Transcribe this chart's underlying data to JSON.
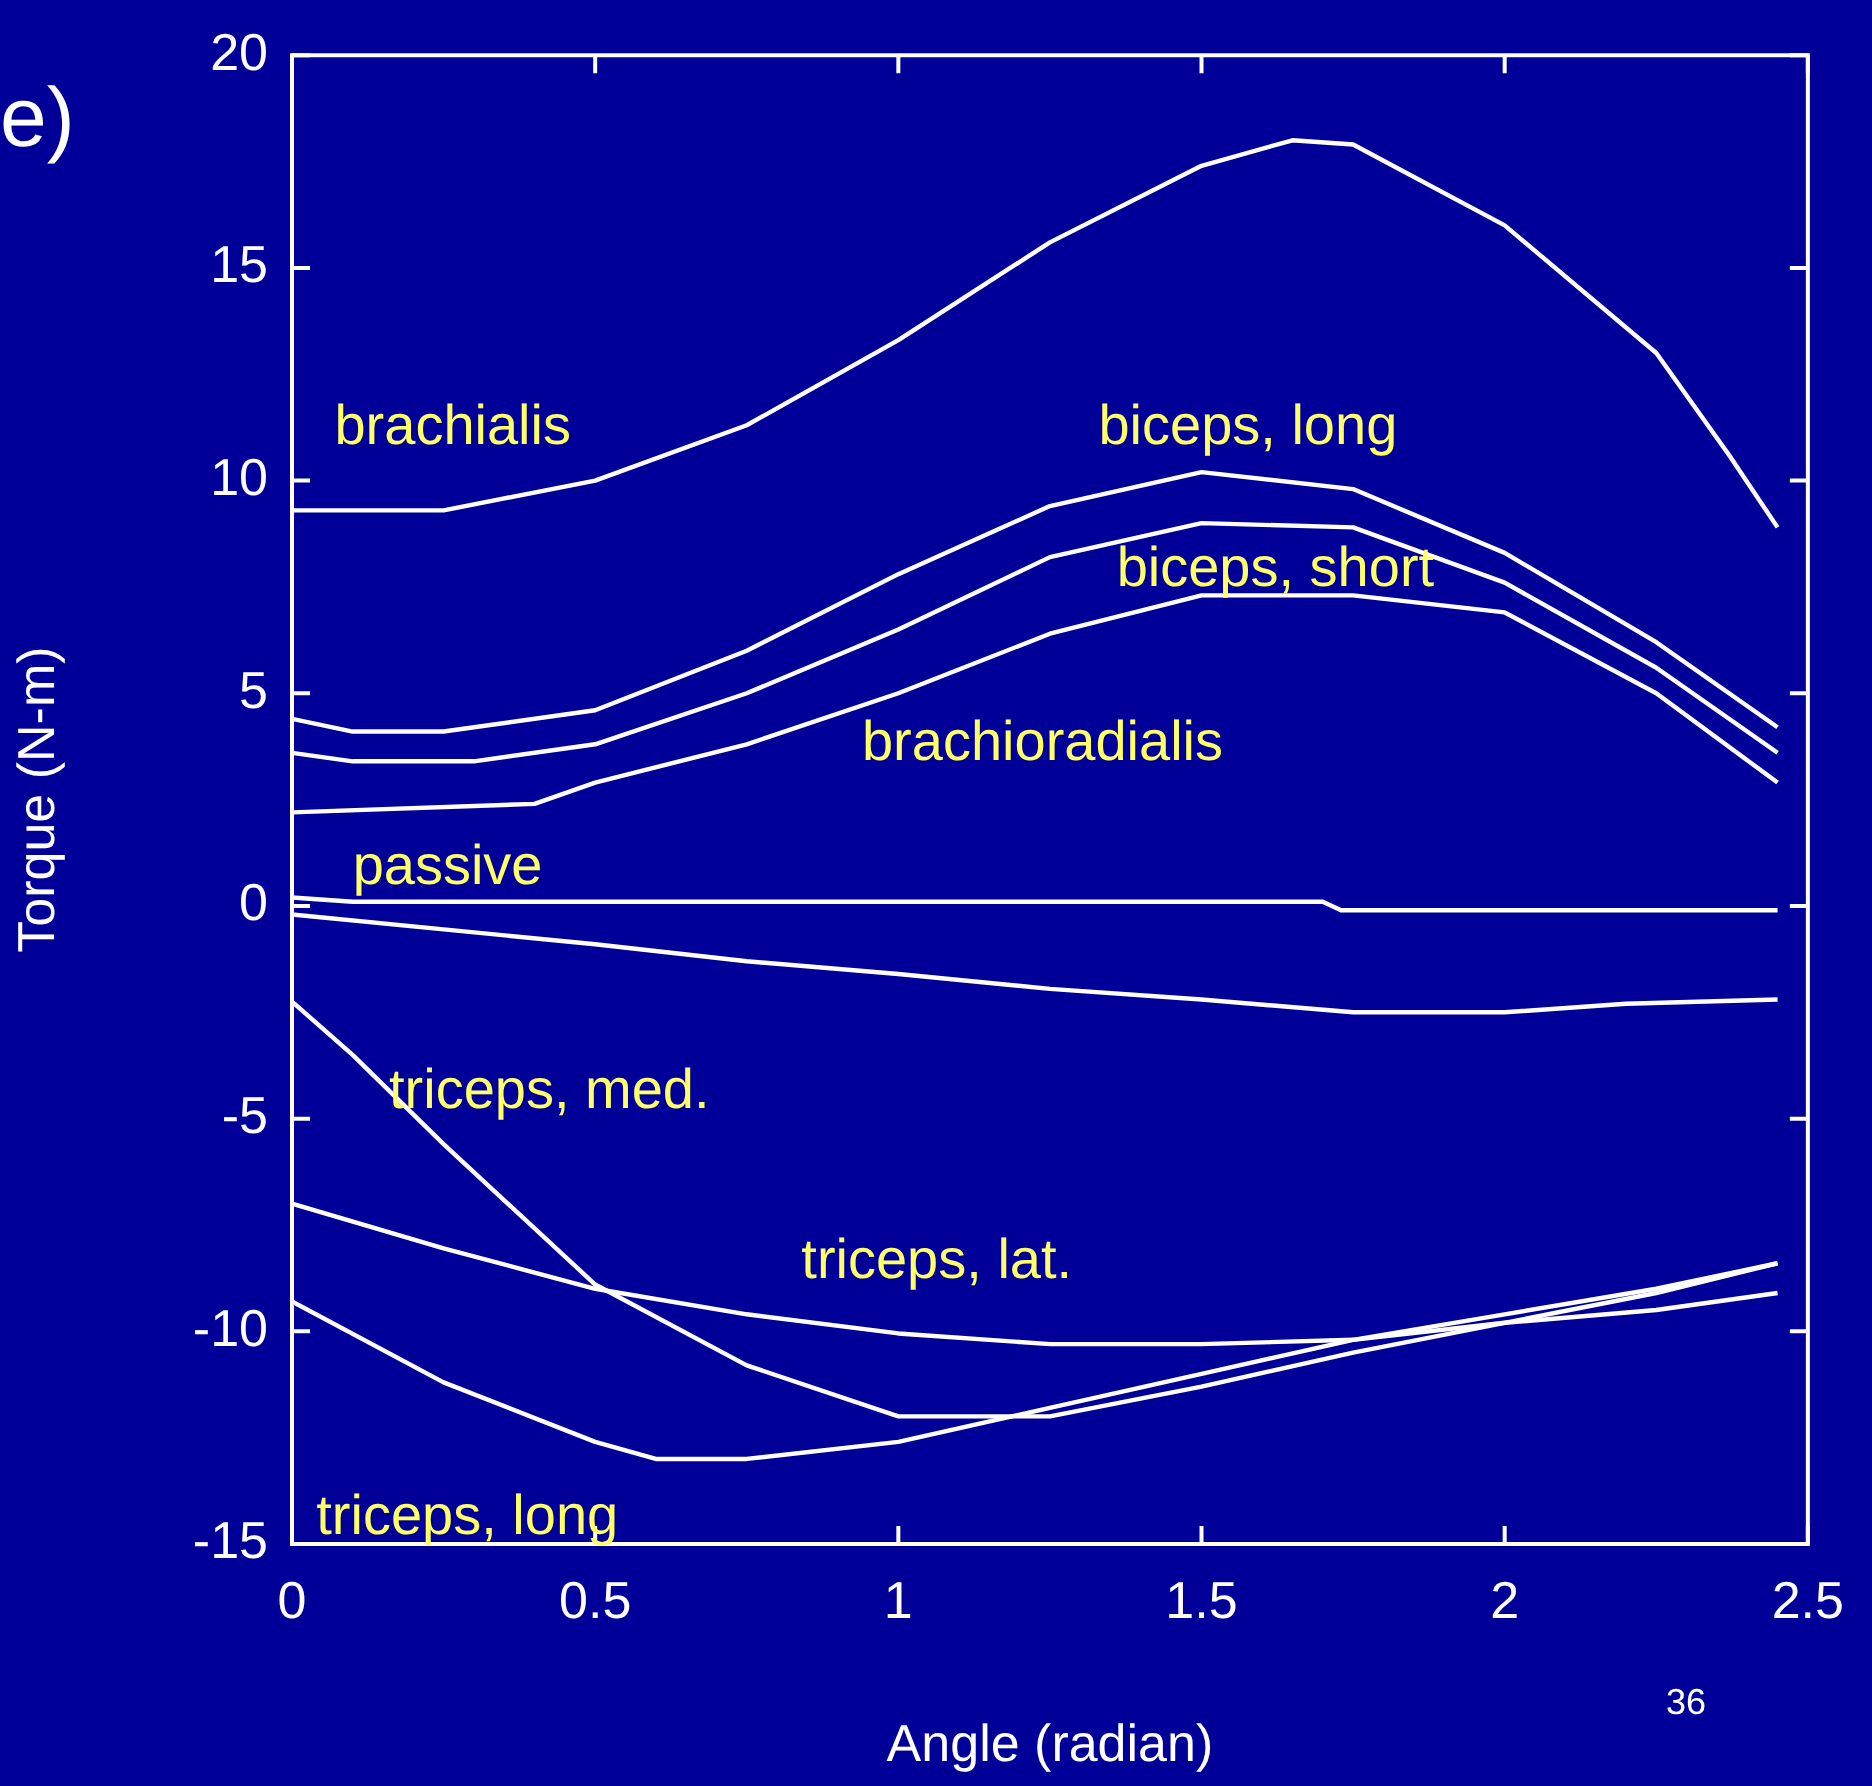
{
  "chart_data": {
    "type": "line",
    "xlabel": "Angle (radian)",
    "ylabel": "Torque (N-m)",
    "xlim": [
      0,
      2.5
    ],
    "xticks": [
      0,
      0.5,
      1,
      1.5,
      2,
      2.5
    ],
    "ylim": [
      -15,
      20
    ],
    "yticks": [
      -15,
      -10,
      -5,
      0,
      5,
      10,
      15,
      20
    ],
    "marker": "none",
    "line_style": "solid",
    "series": [
      {
        "name": "brachialis",
        "color": "#ffffff",
        "x": [
          0,
          0.25,
          0.5,
          0.75,
          1,
          1.25,
          1.5,
          1.65,
          1.75,
          2,
          2.25,
          2.37,
          2.45
        ],
        "values": [
          9.3,
          9.3,
          10.0,
          11.3,
          13.3,
          15.6,
          17.4,
          18.0,
          17.9,
          16.0,
          13.0,
          10.6,
          8.9
        ]
      },
      {
        "name": "biceps, long",
        "color": "#ffffff",
        "x": [
          0,
          0.1,
          0.25,
          0.5,
          0.75,
          1,
          1.25,
          1.5,
          1.75,
          2,
          2.25,
          2.45
        ],
        "values": [
          4.4,
          4.1,
          4.1,
          4.6,
          6.0,
          7.8,
          9.4,
          10.2,
          9.8,
          8.3,
          6.2,
          4.2
        ]
      },
      {
        "name": "biceps, short",
        "color": "#ffffff",
        "x": [
          0,
          0.1,
          0.3,
          0.5,
          0.75,
          1,
          1.25,
          1.5,
          1.75,
          2,
          2.25,
          2.45
        ],
        "values": [
          3.6,
          3.4,
          3.4,
          3.8,
          5.0,
          6.5,
          8.2,
          9.0,
          8.9,
          7.6,
          5.6,
          3.6
        ]
      },
      {
        "name": "brachioradialis",
        "color": "#ffffff",
        "x": [
          0,
          0.4,
          0.5,
          0.75,
          1,
          1.25,
          1.5,
          1.75,
          2,
          2.25,
          2.45
        ],
        "values": [
          2.2,
          2.4,
          2.9,
          3.8,
          5.0,
          6.4,
          7.3,
          7.3,
          6.9,
          5.0,
          2.9
        ]
      },
      {
        "name": "passive",
        "color": "#ffffff",
        "x": [
          0,
          0.1,
          1.7,
          1.73,
          2.45
        ],
        "values": [
          0.2,
          0.1,
          0.1,
          -0.1,
          -0.1
        ]
      },
      {
        "color": "#ffffff",
        "x": [
          0,
          0.25,
          0.5,
          0.75,
          1,
          1.25,
          1.5,
          1.75,
          2,
          2.2,
          2.45
        ],
        "values": [
          -0.2,
          -0.55,
          -0.9,
          -1.3,
          -1.6,
          -1.95,
          -2.2,
          -2.5,
          -2.5,
          -2.3,
          -2.2
        ]
      },
      {
        "name": "triceps, med.",
        "color": "#ffffff",
        "x": [
          0,
          0.1,
          0.25,
          0.5,
          0.75,
          1,
          1.25,
          1.5,
          1.75,
          2,
          2.25,
          2.45
        ],
        "values": [
          -2.25,
          -3.5,
          -5.6,
          -8.9,
          -10.8,
          -12.0,
          -12.0,
          -11.3,
          -10.5,
          -9.8,
          -9.1,
          -8.4
        ]
      },
      {
        "name": "triceps, lat.",
        "color": "#ffffff",
        "x": [
          0,
          0.25,
          0.5,
          0.75,
          1,
          1.25,
          1.5,
          1.75,
          2,
          2.25,
          2.45
        ],
        "values": [
          -7.0,
          -8.05,
          -9.0,
          -9.6,
          -10.05,
          -10.3,
          -10.3,
          -10.2,
          -9.8,
          -9.5,
          -9.1
        ]
      },
      {
        "name": "triceps, long",
        "color": "#ffffff",
        "x": [
          0,
          0.25,
          0.5,
          0.6,
          0.75,
          1,
          1.25,
          1.5,
          1.75,
          2,
          2.25,
          2.45
        ],
        "values": [
          -9.3,
          -11.2,
          -12.6,
          -13.0,
          -13.0,
          -12.6,
          -11.8,
          -11.0,
          -10.2,
          -9.6,
          -9.0,
          -8.4
        ]
      }
    ],
    "annotations": [
      "e)",
      "36"
    ]
  }
}
